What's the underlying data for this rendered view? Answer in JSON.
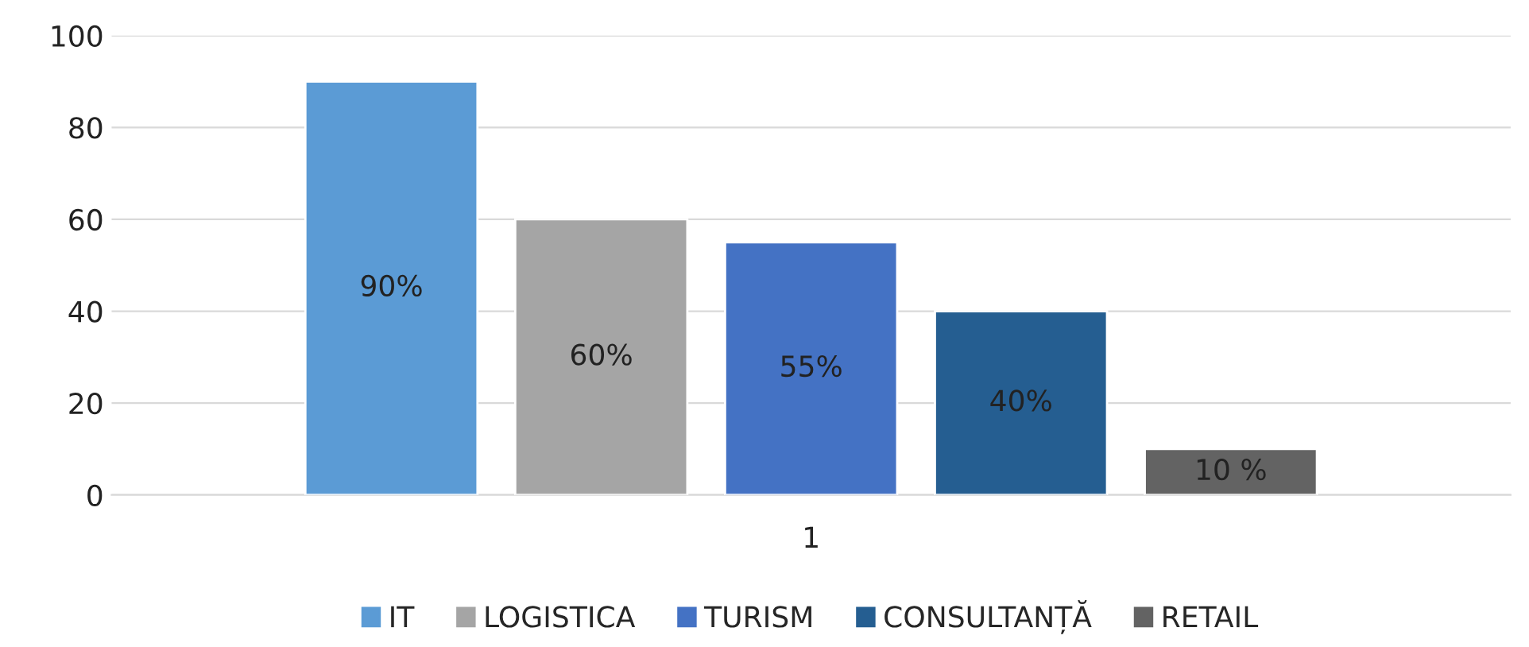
{
  "chart_data": {
    "type": "bar",
    "categories": [
      "1"
    ],
    "series": [
      {
        "name": "IT",
        "color": "#5b9bd5",
        "values": [
          90
        ],
        "value_labels": [
          "90%"
        ]
      },
      {
        "name": "LOGISTICA",
        "color": "#a5a5a5",
        "values": [
          60
        ],
        "value_labels": [
          "60%"
        ]
      },
      {
        "name": "TURISM",
        "color": "#4472c4",
        "values": [
          55
        ],
        "value_labels": [
          "55%"
        ]
      },
      {
        "name": "CONSULTANȚĂ",
        "color": "#255e91",
        "values": [
          40
        ],
        "value_labels": [
          "40%"
        ]
      },
      {
        "name": "RETAIL",
        "color": "#636363",
        "values": [
          10
        ],
        "value_labels": [
          "10 %"
        ]
      }
    ],
    "ylim": [
      0,
      100
    ],
    "yticks": [
      0,
      20,
      40,
      60,
      80,
      100
    ],
    "grid": "y",
    "legend": "bottom"
  }
}
